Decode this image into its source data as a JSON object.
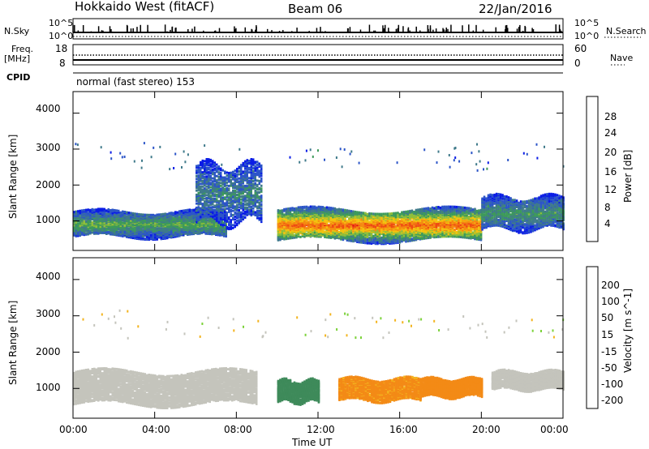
{
  "header": {
    "station": "Hokkaido West (fitACF)",
    "beam": "Beam 06",
    "date": "22/Jan/2016"
  },
  "side_labels": {
    "nsky": "N.Sky",
    "nsearch": "N.Search",
    "freq": "Freq.",
    "mhz": "[MHz]",
    "nave": "Nave",
    "cpid": "CPID",
    "cpid_value": "normal (fast stereo) 153",
    "nsky_ticks": [
      "10^5",
      "10^0"
    ],
    "nsearch_ticks": [
      "10^5",
      "10^0"
    ],
    "freq_ticks": [
      "18",
      "8"
    ],
    "nave_ticks": [
      "60",
      "0"
    ]
  },
  "chart_data": [
    {
      "type": "heatmap",
      "title": "",
      "xlabel": "",
      "ylabel": "Slant Range [km]",
      "x_ticks": [
        "00:00",
        "04:00",
        "08:00",
        "12:00",
        "16:00",
        "20:00",
        "00:00"
      ],
      "y_ticks": [
        1000,
        2000,
        3000,
        4000
      ],
      "ylim": [
        180,
        4600
      ],
      "colorbar": {
        "label": "Power [dB]",
        "ticks": [
          4,
          8,
          12,
          16,
          20,
          24,
          28
        ],
        "range": [
          0,
          32
        ],
        "colors": [
          "#0a1ce6",
          "#2c55c8",
          "#3f7a8a",
          "#3d9a5a",
          "#8fbe3a",
          "#f3c20e",
          "#f58a10",
          "#ee4a12",
          "#e40e0e"
        ]
      },
      "echo_regions": [
        {
          "name": "band-early",
          "t_start": 0.0,
          "t_end": 7.5,
          "range_low": 600,
          "range_high": 1300,
          "power_db": 14
        },
        {
          "name": "spur-0630-0900",
          "t_start": 6.0,
          "t_end": 9.2,
          "range_low": 1000,
          "range_high": 2600,
          "power_db": 10
        },
        {
          "name": "main-1000-2000",
          "t_start": 10.0,
          "t_end": 20.0,
          "range_low": 500,
          "range_high": 1350,
          "power_db": 26
        },
        {
          "name": "late",
          "t_start": 20.0,
          "t_end": 24.0,
          "range_low": 800,
          "range_high": 1700,
          "power_db": 12
        }
      ]
    },
    {
      "type": "heatmap",
      "title": "",
      "xlabel": "Time UT",
      "ylabel": "Slant Range [km]",
      "x_ticks": [
        "00:00",
        "04:00",
        "08:00",
        "12:00",
        "16:00",
        "20:00",
        "00:00"
      ],
      "y_ticks": [
        1000,
        2000,
        3000,
        4000
      ],
      "ylim": [
        180,
        4600
      ],
      "colorbar": {
        "label": "Velocity [m s^-1]",
        "ticks": [
          -200,
          -100,
          -50,
          -15,
          15,
          50,
          100,
          200
        ],
        "colors": [
          "#1632c8",
          "#3b66c0",
          "#3e8a5a",
          "#7cd23a",
          "#c4c4bc",
          "#f3b41e",
          "#f38a16",
          "#ee4e14",
          "#e41212"
        ]
      },
      "echo_regions": [
        {
          "name": "ground-scatter-early",
          "t_start": 0.0,
          "t_end": 9.0,
          "range_low": 600,
          "range_high": 1500,
          "velocity": 0
        },
        {
          "name": "green-1000-1200",
          "t_start": 10.0,
          "t_end": 12.0,
          "range_low": 650,
          "range_high": 1250,
          "velocity": 60
        },
        {
          "name": "orange-1300-1700",
          "t_start": 13.0,
          "t_end": 17.0,
          "range_low": 700,
          "range_high": 1300,
          "velocity": -40
        },
        {
          "name": "orange-1700-2000",
          "t_start": 17.0,
          "t_end": 20.0,
          "range_low": 800,
          "range_high": 1300,
          "velocity": -60
        },
        {
          "name": "late-grey",
          "t_start": 20.5,
          "t_end": 24.0,
          "range_low": 1000,
          "range_high": 1500,
          "velocity": 0
        }
      ]
    }
  ]
}
